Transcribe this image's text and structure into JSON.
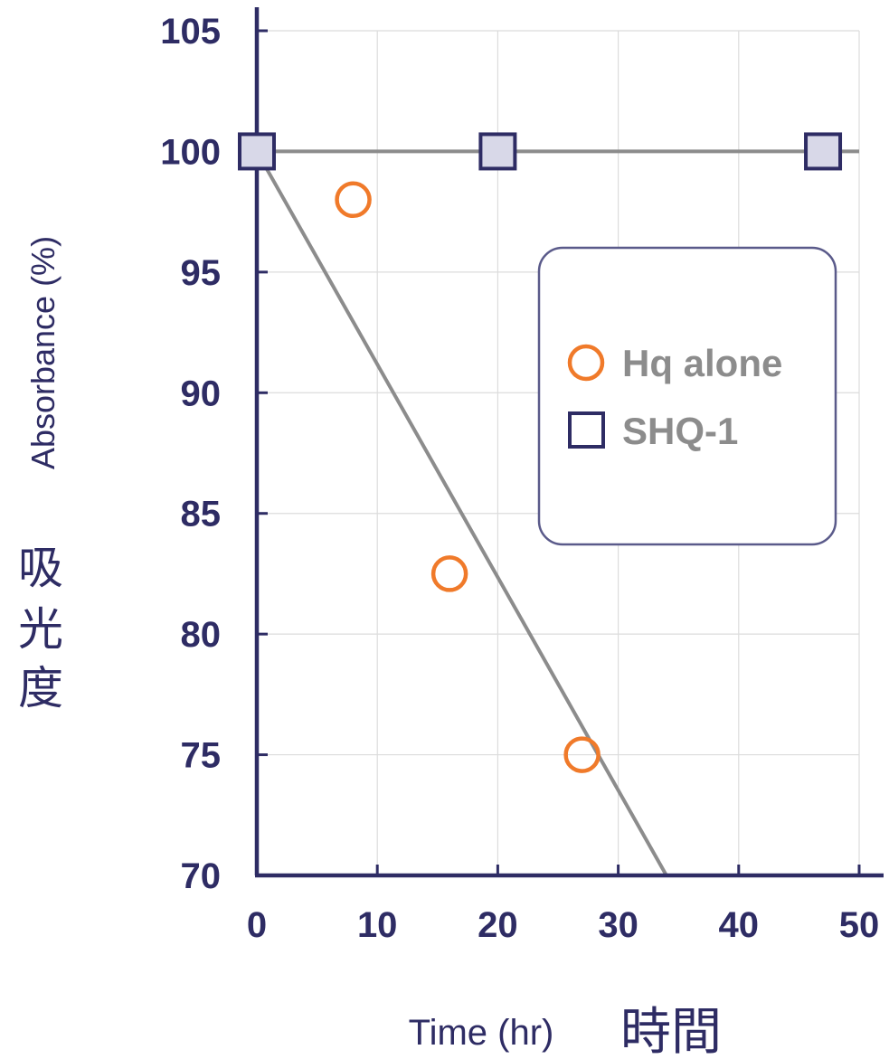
{
  "chart_data": {
    "type": "scatter",
    "xlabel": "Time (hr)",
    "xlabel_cjk": "時間",
    "ylabel": "Absorbance (%)",
    "ylabel_cjk": "吸光度",
    "xlim": [
      0,
      50
    ],
    "ylim": [
      70,
      105
    ],
    "xticks": [
      0,
      10,
      20,
      30,
      40,
      50
    ],
    "yticks": [
      70,
      75,
      80,
      85,
      90,
      95,
      100,
      105
    ],
    "grid": true,
    "legend_position": "right-middle",
    "series": [
      {
        "name": "Hq alone",
        "marker": "circle-open",
        "color": "#f07a2a",
        "points": [
          [
            0,
            100
          ],
          [
            8,
            98
          ],
          [
            16,
            82.5
          ],
          [
            27,
            75
          ]
        ],
        "trend_line": [
          [
            0,
            100
          ],
          [
            34,
            70
          ]
        ]
      },
      {
        "name": "SHQ-1",
        "marker": "square",
        "color": "#2e2c64",
        "fill": "#d8d8e8",
        "points": [
          [
            0,
            100
          ],
          [
            20,
            100
          ],
          [
            47,
            100
          ]
        ],
        "trend_line": [
          [
            0,
            100
          ],
          [
            50,
            100
          ]
        ]
      }
    ],
    "colors": {
      "axis": "#2e2c64",
      "grid": "#dcdcdc",
      "trend": "#8c8c8c",
      "legend_border": "#5a5a8a"
    }
  }
}
